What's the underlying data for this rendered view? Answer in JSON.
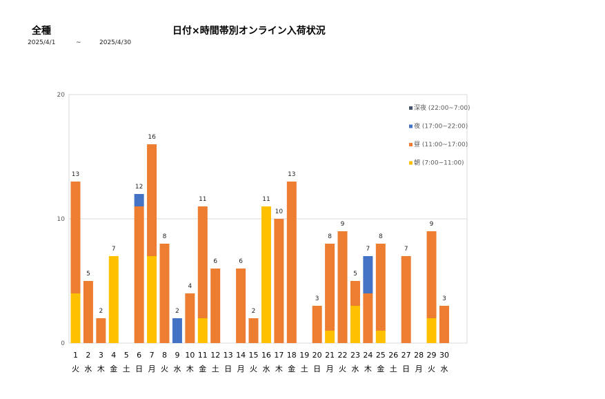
{
  "header": {
    "category": "全種",
    "title": "日付×時間帯別オンライン入荷状況",
    "range_start": "2025/4/1",
    "range_sep": "~",
    "range_end": "2025/4/30"
  },
  "chart_data": {
    "type": "bar",
    "stacked": true,
    "title": "日付×時間帯別オンライン入荷状況",
    "xlabel": "",
    "ylabel": "",
    "ylim": [
      0,
      20
    ],
    "yticks": [
      0,
      10,
      20
    ],
    "grid": true,
    "legend_position": "top-right",
    "categories": [
      "1",
      "2",
      "3",
      "4",
      "5",
      "6",
      "7",
      "8",
      "9",
      "10",
      "11",
      "12",
      "13",
      "14",
      "15",
      "16",
      "17",
      "18",
      "19",
      "20",
      "21",
      "22",
      "23",
      "24",
      "25",
      "26",
      "27",
      "28",
      "29",
      "30"
    ],
    "weekdays": [
      "火",
      "水",
      "木",
      "金",
      "土",
      "日",
      "月",
      "火",
      "水",
      "木",
      "金",
      "土",
      "日",
      "月",
      "火",
      "水",
      "木",
      "金",
      "土",
      "日",
      "月",
      "火",
      "水",
      "木",
      "金",
      "土",
      "日",
      "月",
      "火",
      "水"
    ],
    "series": [
      {
        "name": "朝 (7:00~11:00)",
        "color": "#FFC000",
        "values": [
          4,
          0,
          0,
          7,
          0,
          0,
          7,
          0,
          0,
          0,
          2,
          0,
          0,
          0,
          0,
          11,
          0,
          0,
          0,
          0,
          1,
          0,
          3,
          0,
          1,
          0,
          0,
          0,
          2,
          0
        ]
      },
      {
        "name": "昼 (11:00~17:00)",
        "color": "#ED7D31",
        "values": [
          9,
          5,
          2,
          0,
          0,
          11,
          9,
          8,
          0,
          4,
          9,
          6,
          0,
          6,
          2,
          0,
          10,
          13,
          0,
          3,
          7,
          9,
          2,
          4,
          7,
          0,
          7,
          0,
          7,
          3
        ]
      },
      {
        "name": "夜 (17:00~22:00)",
        "color": "#4472C4",
        "values": [
          0,
          0,
          0,
          0,
          0,
          1,
          0,
          0,
          2,
          0,
          0,
          0,
          0,
          0,
          0,
          0,
          0,
          0,
          0,
          0,
          0,
          0,
          0,
          3,
          0,
          0,
          0,
          0,
          0,
          0
        ]
      },
      {
        "name": "深夜 (22:00~7:00)",
        "color": "#44546A",
        "values": [
          0,
          0,
          0,
          0,
          0,
          0,
          0,
          0,
          0,
          0,
          0,
          0,
          0,
          0,
          0,
          0,
          0,
          0,
          0,
          0,
          0,
          0,
          0,
          0,
          0,
          0,
          0,
          0,
          0,
          0
        ]
      }
    ],
    "totals": [
      13,
      5,
      2,
      7,
      0,
      12,
      16,
      8,
      2,
      4,
      11,
      6,
      0,
      6,
      2,
      11,
      10,
      13,
      0,
      3,
      8,
      9,
      5,
      7,
      8,
      0,
      7,
      0,
      9,
      3
    ],
    "legend_order": [
      "深夜 (22:00~7:00)",
      "夜 (17:00~22:00)",
      "昼 (11:00~17:00)",
      "朝 (7:00~11:00)"
    ]
  }
}
